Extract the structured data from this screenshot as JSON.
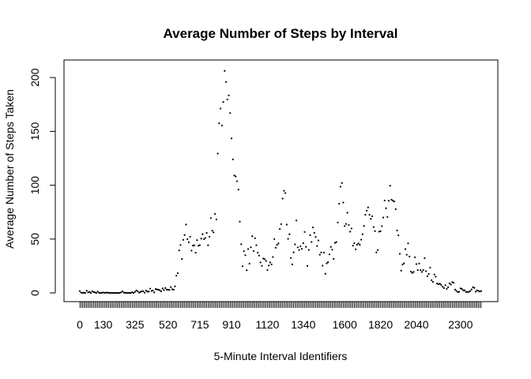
{
  "chart_data": {
    "type": "scatter",
    "title": "Average Number of Steps by Interval",
    "xlabel": "5-Minute Interval Identifiers",
    "ylabel": "Average Number of Steps Taken",
    "ylim": [
      0,
      206
    ],
    "yticks": [
      0,
      50,
      100,
      150,
      200
    ],
    "xtick_labels": [
      "0",
      "130",
      "325",
      "520",
      "715",
      "910",
      "1120",
      "1340",
      "1600",
      "1820",
      "2040",
      "2300"
    ],
    "xtick_label_index": [
      0,
      17,
      40,
      64,
      87,
      110,
      136,
      162,
      192,
      218,
      244,
      276
    ],
    "grid": false,
    "legend": "none",
    "point_color": "#000000",
    "values": [
      1.7,
      0.3,
      0.1,
      0.2,
      0.1,
      2.1,
      0.5,
      0.9,
      0.0,
      1.5,
      0.8,
      0.5,
      0.0,
      1.3,
      0.1,
      0.0,
      0.2,
      0.4,
      0.1,
      0.2,
      0.4,
      0.0,
      0.1,
      0.0,
      0.0,
      0.0,
      0.0,
      0.0,
      0.0,
      0.0,
      0.6,
      1.5,
      0.3,
      0.1,
      0.0,
      0.1,
      0.0,
      0.0,
      0.7,
      0.0,
      1.1,
      2.3,
      1.5,
      0.3,
      0.9,
      1.6,
      1.5,
      0.2,
      2.1,
      1.2,
      1.3,
      4.0,
      1.8,
      2.2,
      0.5,
      3.6,
      3.2,
      3.0,
      2.5,
      1.5,
      4.1,
      2.6,
      4.6,
      3.1,
      2.9,
      2.9,
      5.4,
      3.4,
      3.0,
      6.1,
      16.0,
      18.3,
      39.5,
      44.5,
      31.5,
      49.3,
      53.8,
      63.5,
      49.9,
      47.1,
      52.2,
      39.3,
      44.0,
      44.2,
      37.4,
      49.0,
      43.8,
      44.4,
      50.5,
      54.5,
      49.9,
      51.0,
      55.7,
      44.3,
      52.2,
      69.5,
      57.8,
      56.2,
      73.4,
      68.2,
      129.4,
      157.5,
      171.2,
      155.4,
      177.3,
      206.2,
      195.9,
      179.6,
      183.4,
      167.0,
      143.5,
      124.0,
      109.1,
      108.1,
      103.7,
      95.97,
      66.2,
      45.2,
      24.8,
      38.8,
      34.98,
      21.1,
      40.7,
      27.2,
      42.4,
      52.7,
      38.9,
      50.8,
      44.3,
      37.4,
      34.7,
      28.3,
      25.1,
      31.9,
      31.4,
      29.7,
      21.3,
      25.5,
      28.3,
      26.5,
      33.4,
      50.0,
      42.0,
      44.6,
      46.0,
      59.3,
      63.9,
      87.6,
      94.8,
      92.8,
      63.4,
      50.2,
      54.5,
      32.4,
      26.5,
      37.7,
      45.1,
      67.3,
      42.3,
      39.9,
      43.3,
      40.9,
      46.2,
      56.6,
      42.8,
      25.1,
      39.98,
      53.6,
      47.3,
      60.8,
      55.8,
      51.96,
      43.6,
      48.7,
      35.5,
      37.6,
      25.3,
      37.4,
      17.8,
      27.5,
      28.5,
      35.8,
      42.7,
      40.2,
      31.6,
      46.5,
      47.2,
      65.4,
      82.9,
      98.7,
      102.1,
      83.96,
      62.1,
      64.1,
      74.5,
      63.2,
      56.9,
      59.8,
      43.9,
      46.2,
      40.5,
      44.7,
      46.0,
      44.6,
      49.5,
      54.5,
      62.2,
      72.6,
      76.3,
      79.4,
      72.6,
      68.8,
      71.2,
      61.2,
      57.4,
      37.7,
      39.9,
      56.9,
      57.3,
      62.0,
      70.0,
      85.8,
      78.6,
      70.5,
      85.6,
      99.5,
      86.6,
      85.6,
      84.9,
      77.8,
      58.0,
      53.4,
      36.3,
      20.7,
      26.4,
      27.5,
      40.7,
      35.5,
      46.0,
      33.8,
      19.8,
      18.6,
      19.5,
      33.1,
      26.8,
      21.2,
      27.3,
      21.3,
      19.5,
      21.3,
      32.3,
      20.2,
      15.6,
      17.6,
      23.5,
      11.8,
      10.3,
      17.2,
      15.1,
      8.7,
      8.1,
      8.5,
      7.5,
      5.8,
      4.5,
      7.2,
      3.8,
      5.3,
      8.9,
      7.8,
      10.0,
      9.4,
      3.1,
      1.9,
      0.8,
      1.1,
      4.2,
      3.7,
      2.5,
      2.4,
      0.9,
      0.9,
      1.0,
      1.7,
      3.2,
      5.3,
      4.7,
      1.2,
      2.4,
      1.9,
      1.3,
      1.8
    ]
  }
}
